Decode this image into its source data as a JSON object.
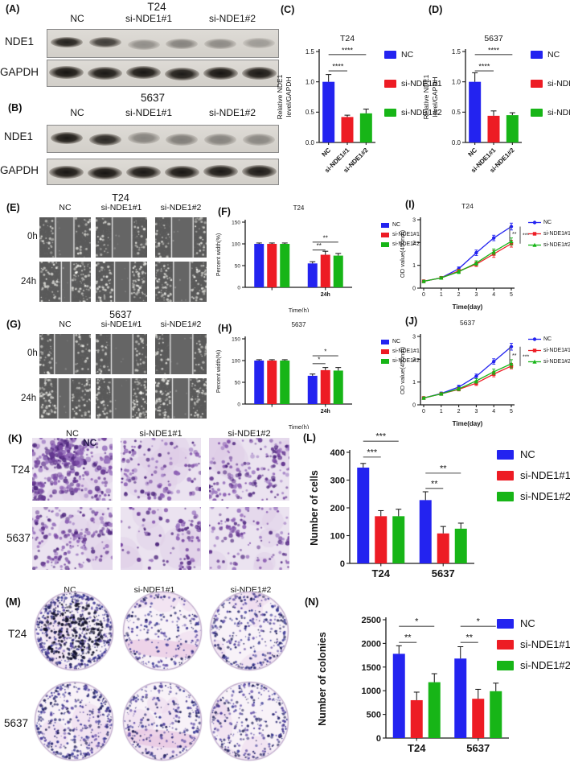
{
  "colors": {
    "nc": "#2323F0",
    "si1": "#ED1C24",
    "si2": "#17B517",
    "axis": "#1a1a1a",
    "sig": "#4a4a4a"
  },
  "legend": [
    "NC",
    "si-NDE1#1",
    "si-NDE1#2"
  ],
  "panel_letters": {
    "A": "(A)",
    "B": "(B)",
    "C": "(C)",
    "D": "(D)",
    "E": "(E)",
    "F": "(F)",
    "G": "(G)",
    "H": "(H)",
    "I": "(I)",
    "J": "(J)",
    "K": "(K)",
    "L": "(L)",
    "M": "(M)",
    "N": "(N)"
  },
  "blots": {
    "A": {
      "title": "T24",
      "groups": [
        "NC",
        "si-NDE1#1",
        "si-NDE1#2"
      ],
      "rows": [
        {
          "label": "NDE1",
          "intensities": [
            0.92,
            0.78,
            0.36,
            0.42,
            0.38,
            0.3
          ]
        },
        {
          "label": "GAPDH",
          "intensities": [
            0.98,
            0.96,
            0.97,
            0.95,
            0.98,
            0.96
          ]
        }
      ]
    },
    "B": {
      "title": "5637",
      "groups": [
        "NC",
        "si-NDE1#1",
        "si-NDE1#2"
      ],
      "rows": [
        {
          "label": "NDE1",
          "intensities": [
            0.96,
            0.88,
            0.42,
            0.45,
            0.42,
            0.4
          ]
        },
        {
          "label": "GAPDH",
          "intensities": [
            0.97,
            0.98,
            0.96,
            0.97,
            0.96,
            0.95
          ]
        }
      ]
    }
  },
  "wound": {
    "E": {
      "title": "T24",
      "cols": [
        "NC",
        "si-NDE1#1",
        "si-NDE1#2"
      ],
      "rows": [
        "0h",
        "24h"
      ],
      "gaps": [
        [
          0.34,
          0.36,
          0.4
        ],
        [
          0.16,
          0.28,
          0.3
        ]
      ]
    },
    "G": {
      "title": "5637",
      "cols": [
        "NC",
        "si-NDE1#1",
        "si-NDE1#2"
      ],
      "rows": [
        "0h",
        "24h"
      ],
      "gaps": [
        [
          0.36,
          0.4,
          0.42
        ],
        [
          0.22,
          0.34,
          0.3
        ]
      ]
    }
  },
  "transwell": {
    "cols": [
      "NC",
      "si-NDE1#1",
      "si-NDE1#2"
    ],
    "rows": [
      "T24",
      "5637"
    ],
    "overlay_label": "NC",
    "densities": [
      [
        380,
        150,
        190
      ],
      [
        240,
        110,
        130
      ]
    ]
  },
  "colony": {
    "cols": [
      "NC",
      "si-NDE1#1",
      "si-NDE1#2"
    ],
    "rows": [
      "T24",
      "5637"
    ],
    "densities": [
      [
        560,
        240,
        340
      ],
      [
        430,
        280,
        310
      ]
    ]
  },
  "chart_data": [
    {
      "id": "C",
      "type": "bar",
      "title": "T24",
      "ylabel": [
        "Relative NDE1",
        "level/GAPDH"
      ],
      "ylim": [
        0,
        1.5
      ],
      "yticks": [
        0,
        0.5,
        1,
        1.5
      ],
      "ydec": 1,
      "categories": [
        "NC",
        "si-NDE1#1",
        "si-NDE1#2"
      ],
      "values": [
        1.0,
        0.42,
        0.48
      ],
      "errors": [
        0.12,
        0.03,
        0.07
      ],
      "bar_colors": [
        "nc",
        "si1",
        "si2"
      ],
      "sig": [
        {
          "a": 0,
          "b": 1,
          "y": 1.18,
          "label": "****"
        },
        {
          "a": 0,
          "b": 2,
          "y": 1.45,
          "label": "****"
        }
      ]
    },
    {
      "id": "D",
      "type": "bar",
      "title": "5637",
      "ylabel": [
        "Relative NDE1",
        "level/GAPDH"
      ],
      "ylim": [
        0,
        1.5
      ],
      "yticks": [
        0,
        0.5,
        1,
        1.5
      ],
      "ydec": 1,
      "categories": [
        "NC",
        "si-NDE1#1",
        "si-NDE1#2"
      ],
      "values": [
        1.0,
        0.44,
        0.45
      ],
      "errors": [
        0.15,
        0.08,
        0.04
      ],
      "bar_colors": [
        "nc",
        "si1",
        "si2"
      ],
      "sig": [
        {
          "a": 0,
          "b": 1,
          "y": 1.18,
          "label": "****"
        },
        {
          "a": 0,
          "b": 2,
          "y": 1.45,
          "label": "****"
        }
      ]
    },
    {
      "id": "F",
      "type": "grouped_bar",
      "title": "T24",
      "ylabel": [
        "Percent width(%)"
      ],
      "xlabel": "Time(h)",
      "ylim": [
        0,
        150
      ],
      "yticks": [
        0,
        50,
        100,
        150
      ],
      "ydec": 0,
      "categories": [
        "",
        "24h"
      ],
      "series": [
        {
          "name": "NC",
          "color": "nc",
          "values": [
            100,
            55
          ],
          "errors": [
            2,
            4
          ]
        },
        {
          "name": "si-NDE1#1",
          "color": "si1",
          "values": [
            100,
            75
          ],
          "errors": [
            2,
            8
          ]
        },
        {
          "name": "si-NDE1#2",
          "color": "si2",
          "values": [
            100,
            73
          ],
          "errors": [
            2,
            5
          ]
        }
      ],
      "sig": [
        {
          "g": 1,
          "a": 0,
          "b": 1,
          "y": 86,
          "label": "**"
        },
        {
          "g": 1,
          "a": 0,
          "b": 2,
          "y": 104,
          "label": "**"
        }
      ]
    },
    {
      "id": "H",
      "type": "grouped_bar",
      "title": "5637",
      "ylabel": [
        "Percent width(%)"
      ],
      "xlabel": "Time(h)",
      "ylim": [
        0,
        150
      ],
      "yticks": [
        0,
        50,
        100,
        150
      ],
      "ydec": 0,
      "categories": [
        "",
        "24h"
      ],
      "series": [
        {
          "name": "NC",
          "color": "nc",
          "values": [
            100,
            65
          ],
          "errors": [
            2,
            4
          ]
        },
        {
          "name": "si-NDE1#1",
          "color": "si1",
          "values": [
            100,
            78
          ],
          "errors": [
            2,
            6
          ]
        },
        {
          "name": "si-NDE1#2",
          "color": "si2",
          "values": [
            100,
            77
          ],
          "errors": [
            2,
            7
          ]
        }
      ],
      "sig": [
        {
          "g": 1,
          "a": 0,
          "b": 1,
          "y": 93,
          "label": "*"
        },
        {
          "g": 1,
          "a": 0,
          "b": 2,
          "y": 111,
          "label": "*"
        }
      ]
    },
    {
      "id": "I",
      "type": "line",
      "title": "T24",
      "ylabel": [
        "OD value(450nm)"
      ],
      "xlabel": "Time(day)",
      "x": [
        0,
        1,
        2,
        3,
        4,
        5
      ],
      "ylim": [
        0,
        3
      ],
      "yticks": [
        0,
        1,
        2,
        3
      ],
      "series": [
        {
          "name": "NC",
          "color": "nc",
          "marker": "circle",
          "values": [
            0.3,
            0.45,
            0.85,
            1.55,
            2.2,
            2.7
          ],
          "errors": [
            0.04,
            0.05,
            0.08,
            0.12,
            0.12,
            0.15
          ]
        },
        {
          "name": "si-NDE1#1",
          "color": "si1",
          "marker": "square",
          "values": [
            0.3,
            0.45,
            0.75,
            1.05,
            1.5,
            1.95
          ],
          "errors": [
            0.04,
            0.05,
            0.08,
            0.1,
            0.15,
            0.15
          ]
        },
        {
          "name": "si-NDE1#2",
          "color": "si2",
          "marker": "triangle",
          "values": [
            0.3,
            0.45,
            0.72,
            1.1,
            1.6,
            2.05
          ],
          "errors": [
            0.04,
            0.05,
            0.08,
            0.1,
            0.12,
            0.15
          ]
        }
      ],
      "sig_right": [
        {
          "label": "**",
          "from": 0,
          "to": 2
        },
        {
          "label": "***",
          "from": 0,
          "to": 1
        }
      ]
    },
    {
      "id": "J",
      "type": "line",
      "title": "5637",
      "ylabel": [
        "OD value(450nm)"
      ],
      "xlabel": "Time(day)",
      "x": [
        0,
        1,
        2,
        3,
        4,
        5
      ],
      "ylim": [
        0,
        3
      ],
      "yticks": [
        0,
        1,
        2,
        3
      ],
      "series": [
        {
          "name": "NC",
          "color": "nc",
          "marker": "circle",
          "values": [
            0.3,
            0.5,
            0.78,
            1.25,
            1.9,
            2.55
          ],
          "errors": [
            0.04,
            0.06,
            0.08,
            0.1,
            0.12,
            0.15
          ]
        },
        {
          "name": "si-NDE1#1",
          "color": "si1",
          "marker": "square",
          "values": [
            0.3,
            0.48,
            0.68,
            0.95,
            1.35,
            1.7
          ],
          "errors": [
            0.04,
            0.05,
            0.07,
            0.1,
            0.12,
            0.12
          ]
        },
        {
          "name": "si-NDE1#2",
          "color": "si2",
          "marker": "triangle",
          "values": [
            0.3,
            0.48,
            0.7,
            1.05,
            1.45,
            1.8
          ],
          "errors": [
            0.04,
            0.05,
            0.07,
            0.1,
            0.12,
            0.18
          ]
        }
      ],
      "sig_right": [
        {
          "label": "**",
          "from": 0,
          "to": 2
        },
        {
          "label": "***",
          "from": 0,
          "to": 1
        }
      ]
    },
    {
      "id": "L",
      "type": "grouped_bar",
      "title": "",
      "ylabel": [
        "Number of cells"
      ],
      "ylim": [
        0,
        400
      ],
      "yticks": [
        0,
        100,
        200,
        300,
        400
      ],
      "ydec": 0,
      "categories": [
        "T24",
        "5637"
      ],
      "series": [
        {
          "name": "NC",
          "color": "nc",
          "values": [
            345,
            228
          ],
          "errors": [
            15,
            30
          ]
        },
        {
          "name": "si-NDE1#1",
          "color": "si1",
          "values": [
            170,
            108
          ],
          "errors": [
            20,
            25
          ]
        },
        {
          "name": "si-NDE1#2",
          "color": "si2",
          "values": [
            170,
            125
          ],
          "errors": [
            25,
            20
          ]
        }
      ],
      "sig": [
        {
          "g": 0,
          "a": 0,
          "b": 1,
          "y": 383,
          "label": "***"
        },
        {
          "g": 0,
          "a": 0,
          "b": 2,
          "y": 440,
          "label": "***"
        },
        {
          "g": 1,
          "a": 0,
          "b": 1,
          "y": 270,
          "label": "**"
        },
        {
          "g": 1,
          "a": 0,
          "b": 2,
          "y": 325,
          "label": "**"
        }
      ]
    },
    {
      "id": "N",
      "type": "grouped_bar",
      "title": "",
      "ylabel": [
        "Number of colonies"
      ],
      "ylim": [
        0,
        2500
      ],
      "yticks": [
        0,
        500,
        1000,
        1500,
        2000,
        2500
      ],
      "ydec": 0,
      "categories": [
        "T24",
        "5637"
      ],
      "series": [
        {
          "name": "NC",
          "color": "nc",
          "values": [
            1780,
            1680
          ],
          "errors": [
            170,
            250
          ]
        },
        {
          "name": "si-NDE1#1",
          "color": "si1",
          "values": [
            800,
            830
          ],
          "errors": [
            170,
            200
          ]
        },
        {
          "name": "si-NDE1#2",
          "color": "si2",
          "values": [
            1180,
            990
          ],
          "errors": [
            180,
            170
          ]
        }
      ],
      "sig": [
        {
          "g": 0,
          "a": 0,
          "b": 1,
          "y": 2020,
          "label": "**"
        },
        {
          "g": 0,
          "a": 0,
          "b": 2,
          "y": 2360,
          "label": "*"
        },
        {
          "g": 1,
          "a": 0,
          "b": 1,
          "y": 2020,
          "label": "**"
        },
        {
          "g": 1,
          "a": 0,
          "b": 2,
          "y": 2360,
          "label": "*"
        }
      ]
    }
  ]
}
